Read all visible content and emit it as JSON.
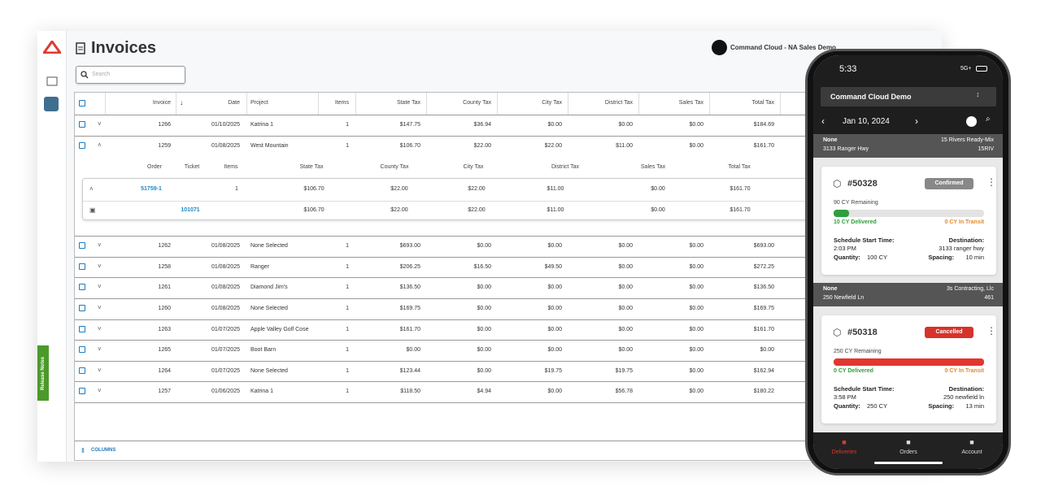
{
  "header": {
    "title": "Invoices",
    "search_placeholder": "Search",
    "org": "Command Cloud - NA Sales Demo"
  },
  "sidebar": {
    "release_notes": "Release Notes"
  },
  "table": {
    "columns": [
      "Invoice",
      "Date",
      "Project",
      "Items",
      "State Tax",
      "County Tax",
      "City Tax",
      "District Tax",
      "Sales Tax",
      "Total Tax"
    ],
    "rows": [
      {
        "cells": [
          "1266",
          "01/10/2025",
          "Katrina 1",
          "1",
          "$147.75",
          "$36.94",
          "$0.00",
          "$0.00",
          "$0.00",
          "$184.69"
        ]
      },
      {
        "cells": [
          "1259",
          "01/08/2025",
          "West Mountain",
          "1",
          "$106.70",
          "$22.00",
          "$22.00",
          "$11.00",
          "$0.00",
          "$161.70"
        ],
        "details": {
          "columns": [
            "Order",
            "Ticket",
            "Items",
            "State Tax",
            "County Tax",
            "City Tax",
            "District Tax",
            "Sales Tax",
            "Total Tax"
          ],
          "rows": [
            {
              "order": "51759-1",
              "items": "1",
              "taxes": [
                "$106.70",
                "$22.00",
                "$22.00",
                "$11.00",
                "$0.00",
                "$161.70"
              ]
            },
            {
              "ticket": "101071",
              "taxes": [
                "$106.70",
                "$22.00",
                "$22.00",
                "$11.00",
                "$0.00",
                "$161.70"
              ]
            }
          ]
        }
      },
      {
        "cells": [
          "1262",
          "01/08/2025",
          "None Selected",
          "1",
          "$693.00",
          "$0.00",
          "$0.00",
          "$0.00",
          "$0.00",
          "$693.00"
        ]
      },
      {
        "cells": [
          "1258",
          "01/08/2025",
          "Ranger",
          "1",
          "$206.25",
          "$16.50",
          "$49.50",
          "$0.00",
          "$0.00",
          "$272.25"
        ]
      },
      {
        "cells": [
          "1261",
          "01/08/2025",
          "Diamond Jim's",
          "1",
          "$136.50",
          "$0.00",
          "$0.00",
          "$0.00",
          "$0.00",
          "$136.50"
        ]
      },
      {
        "cells": [
          "1260",
          "01/08/2025",
          "None Selected",
          "1",
          "$169.75",
          "$0.00",
          "$0.00",
          "$0.00",
          "$0.00",
          "$169.75"
        ]
      },
      {
        "cells": [
          "1263",
          "01/07/2025",
          "Apple Valley Golf Cose",
          "1",
          "$161.70",
          "$0.00",
          "$0.00",
          "$0.00",
          "$0.00",
          "$161.70"
        ]
      },
      {
        "cells": [
          "1265",
          "01/07/2025",
          "Boot Barn",
          "1",
          "$0.00",
          "$0.00",
          "$0.00",
          "$0.00",
          "$0.00",
          "$0.00"
        ]
      },
      {
        "cells": [
          "1264",
          "01/07/2025",
          "None Selected",
          "1",
          "$123.44",
          "$0.00",
          "$19.75",
          "$19.75",
          "$0.00",
          "$162.94"
        ]
      },
      {
        "cells": [
          "1257",
          "01/06/2025",
          "Katrina 1",
          "1",
          "$118.50",
          "$4.94",
          "$0.00",
          "$56.78",
          "$0.00",
          "$180.22"
        ]
      }
    ],
    "footer": "COLUMNS"
  },
  "phone": {
    "time": "5:33",
    "network": "5G+",
    "app_title": "Command Cloud Demo",
    "date": "Jan 10, 2024",
    "groups": [
      {
        "left_title": "None",
        "left_sub": "3133 Ranger Hwy",
        "right_title": "15 Rivers Ready-Mix",
        "right_sub": "15RIV",
        "card": {
          "number": "#50328",
          "status": "Confirmed",
          "remaining": "90 CY Remaining",
          "delivered": "10 CY Delivered",
          "in_transit": "0 CY In Transit",
          "start_label": "Schedule Start Time:",
          "start": "2:03 PM",
          "quantity_label": "Quantity:",
          "quantity": "100 CY",
          "destination_label": "Destination:",
          "destination": "3133 ranger hwy",
          "spacing_label": "Spacing:",
          "spacing": "10 min"
        }
      },
      {
        "left_title": "None",
        "left_sub": "250 Newfield Ln",
        "right_title": "3s Contracting, Llc",
        "right_sub": "461",
        "card": {
          "number": "#50318",
          "status": "Cancelled",
          "remaining": "250 CY Remaining",
          "delivered": "0 CY Delivered",
          "in_transit": "0 CY In Transit",
          "start_label": "Schedule Start Time:",
          "start": "3:58 PM",
          "quantity_label": "Quantity:",
          "quantity": "250 CY",
          "destination_label": "Destination:",
          "destination": "250 newfield ln",
          "spacing_label": "Spacing:",
          "spacing": "13 min"
        }
      }
    ],
    "nav": [
      "Deliveries",
      "Orders",
      "Account"
    ]
  }
}
